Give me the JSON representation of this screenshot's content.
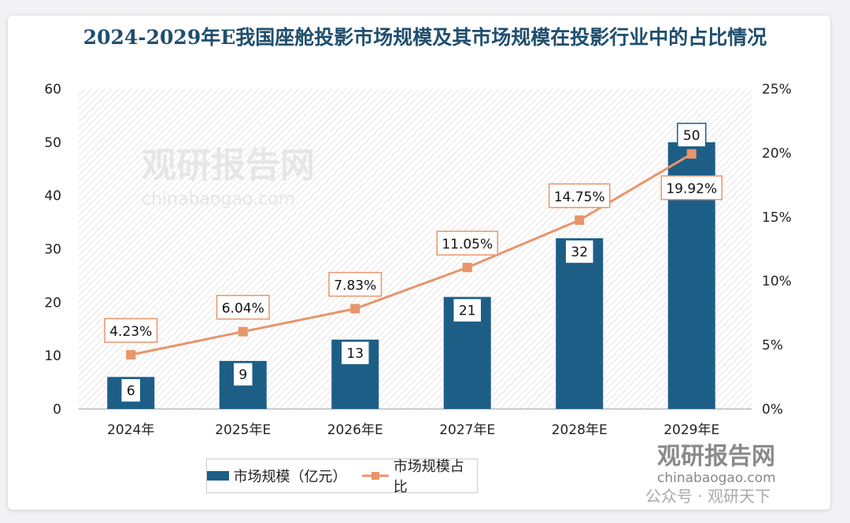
{
  "chart_data": {
    "type": "bar+line",
    "title": "2024-2029年E我国座舱投影市场规模及其市场规模在投影行业中的占比情况",
    "categories": [
      "2024年",
      "2025年E",
      "2026年E",
      "2027年E",
      "2028年E",
      "2029年E"
    ],
    "series": [
      {
        "name": "市场规模（亿元）",
        "type": "bar",
        "axis": "left",
        "values": [
          6,
          9,
          13,
          21,
          32,
          50
        ],
        "labels": [
          "6",
          "9",
          "13",
          "21",
          "32",
          "50"
        ],
        "color": "#1d5e87"
      },
      {
        "name": "市场规模占比",
        "type": "line",
        "axis": "right",
        "values": [
          4.23,
          6.04,
          7.83,
          11.05,
          14.75,
          19.92
        ],
        "labels": [
          "4.23%",
          "6.04%",
          "7.83%",
          "11.05%",
          "14.75%",
          "19.92%"
        ],
        "color": "#e8956b"
      }
    ],
    "y_left": {
      "range": [
        0,
        60
      ],
      "ticks": [
        "0",
        "10",
        "20",
        "30",
        "40",
        "50",
        "60"
      ]
    },
    "y_right": {
      "range": [
        0,
        25
      ],
      "ticks": [
        "0%",
        "5%",
        "10%",
        "15%",
        "20%",
        "25%"
      ]
    },
    "legend": "bottom",
    "grid": false
  },
  "watermark": {
    "center_cn": "观研报告网",
    "center_en": "chinabaogao.com",
    "corner_cn": "观研报告网",
    "corner_en": "chinabaogao.com",
    "wechat": "公众号 · 观研天下"
  }
}
